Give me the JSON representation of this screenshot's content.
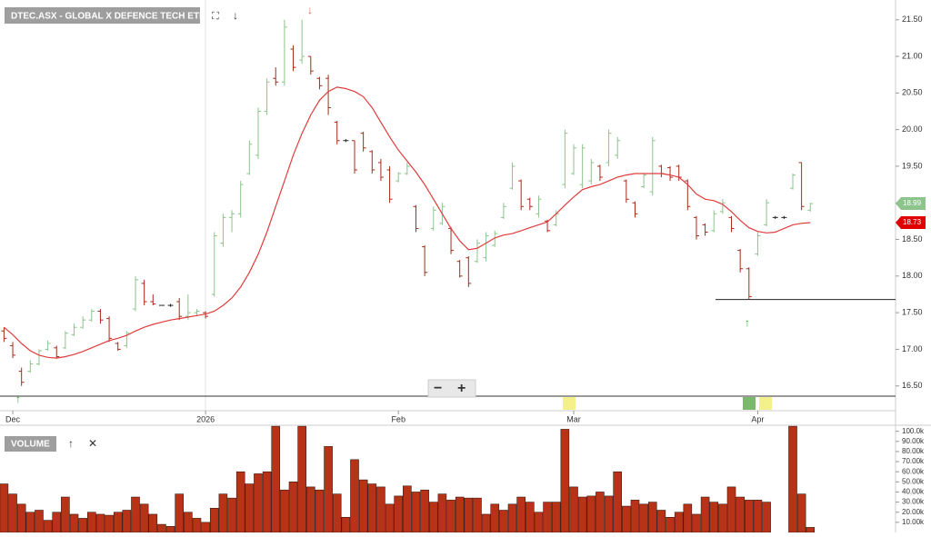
{
  "chart_data": [
    {
      "type": "ohlc",
      "title": "DTEC.ASX - GLOBAL X DEFENCE TECH ETF",
      "categories": [
        null,
        "Dec",
        null,
        null,
        null,
        null,
        null,
        null,
        null,
        null,
        null,
        null,
        null,
        null,
        null,
        null,
        null,
        null,
        null,
        null,
        null,
        null,
        null,
        "2026",
        null,
        null,
        null,
        null,
        null,
        null,
        null,
        null,
        null,
        null,
        null,
        null,
        null,
        null,
        null,
        null,
        null,
        null,
        null,
        null,
        null,
        "Feb",
        null,
        null,
        null,
        null,
        null,
        null,
        null,
        null,
        null,
        null,
        null,
        null,
        null,
        null,
        null,
        null,
        null,
        null,
        null,
        "Mar",
        null,
        null,
        null,
        null,
        null,
        null,
        null,
        null,
        null,
        null,
        null,
        null,
        null,
        null,
        null,
        null,
        null,
        null,
        null,
        null,
        "Apr",
        null,
        null,
        null,
        null,
        null,
        null
      ],
      "open": [
        17.25,
        17.05,
        16.7,
        16.7,
        16.8,
        17.0,
        17.02,
        17.02,
        17.2,
        17.3,
        17.4,
        17.52,
        17.42,
        17.08,
        17.05,
        17.55,
        17.9,
        17.65,
        17.6,
        17.6,
        17.65,
        17.45,
        17.5,
        17.5,
        17.75,
        18.45,
        18.8,
        18.85,
        19.4,
        19.65,
        20.25,
        20.7,
        20.65,
        21.1,
        20.95,
        21.0,
        20.7,
        20.7,
        20.1,
        19.85,
        19.85,
        19.95,
        19.7,
        19.55,
        19.45,
        19.3,
        19.4,
        18.95,
        18.4,
        18.65,
        18.72,
        18.65,
        18.2,
        18.25,
        18.2,
        18.25,
        18.42,
        18.8,
        19.2,
        19.3,
        19.05,
        18.85,
        18.75,
        18.7,
        19.25,
        19.4,
        19.25,
        19.3,
        19.5,
        19.55,
        19.65,
        19.3,
        19.0,
        19.22,
        19.15,
        19.5,
        19.48,
        19.5,
        19.3,
        18.8,
        18.7,
        18.62,
        18.88,
        18.8,
        18.35,
        18.1,
        18.3,
        18.7,
        18.8,
        18.8,
        19.2,
        19.55,
        18.9
      ],
      "high": [
        17.3,
        17.1,
        16.75,
        16.85,
        17.0,
        17.12,
        17.05,
        17.25,
        17.35,
        17.45,
        17.55,
        17.55,
        17.45,
        17.1,
        17.25,
        18.0,
        17.95,
        17.75,
        17.6,
        17.62,
        17.7,
        17.75,
        17.55,
        17.52,
        18.6,
        18.85,
        18.9,
        19.3,
        19.85,
        20.3,
        20.7,
        20.85,
        21.5,
        21.15,
        21.5,
        21.0,
        20.72,
        20.75,
        20.12,
        19.87,
        19.85,
        19.97,
        19.72,
        19.6,
        19.5,
        19.42,
        19.55,
        18.97,
        18.42,
        18.95,
        19.0,
        18.67,
        18.22,
        18.27,
        18.5,
        18.6,
        18.62,
        19.0,
        19.55,
        19.32,
        19.07,
        19.1,
        18.77,
        18.9,
        20.0,
        19.8,
        19.8,
        19.6,
        19.52,
        20.0,
        19.9,
        19.32,
        19.02,
        19.4,
        19.9,
        19.52,
        19.5,
        19.52,
        19.32,
        18.82,
        18.72,
        18.9,
        19.05,
        18.82,
        18.37,
        18.12,
        18.6,
        19.05,
        18.82,
        18.82,
        19.4,
        19.55,
        19.0
      ],
      "low": [
        17.1,
        16.88,
        16.5,
        16.68,
        16.78,
        16.98,
        16.88,
        17.0,
        17.18,
        17.28,
        17.38,
        17.35,
        17.1,
        16.98,
        17.02,
        17.52,
        17.6,
        17.6,
        17.6,
        17.58,
        17.4,
        17.4,
        17.45,
        17.42,
        17.72,
        18.4,
        18.6,
        18.8,
        19.38,
        19.6,
        20.2,
        20.6,
        20.6,
        20.8,
        20.9,
        20.75,
        20.55,
        20.2,
        19.8,
        19.83,
        19.4,
        19.7,
        19.4,
        19.3,
        19.0,
        19.28,
        19.38,
        18.6,
        18.0,
        18.62,
        18.7,
        18.3,
        17.98,
        17.85,
        18.18,
        18.2,
        18.4,
        18.78,
        19.18,
        18.9,
        18.9,
        18.8,
        18.6,
        18.68,
        19.2,
        19.38,
        19.2,
        19.25,
        19.3,
        19.5,
        19.6,
        19.0,
        18.8,
        19.2,
        19.1,
        19.35,
        19.3,
        19.3,
        18.9,
        18.5,
        18.55,
        18.6,
        18.85,
        18.6,
        18.05,
        17.68,
        18.28,
        18.68,
        18.78,
        18.78,
        19.18,
        18.9,
        18.88
      ],
      "close": [
        17.15,
        16.92,
        16.55,
        16.8,
        16.98,
        17.08,
        16.9,
        17.22,
        17.3,
        17.4,
        17.52,
        17.4,
        17.15,
        17.0,
        17.22,
        17.95,
        17.65,
        17.62,
        17.6,
        17.6,
        17.45,
        17.5,
        17.52,
        17.45,
        18.55,
        18.8,
        18.85,
        19.25,
        19.8,
        20.25,
        20.65,
        20.65,
        21.4,
        20.85,
        21.0,
        20.8,
        20.6,
        20.3,
        19.85,
        19.85,
        19.45,
        19.75,
        19.45,
        19.35,
        19.05,
        19.4,
        19.5,
        18.65,
        18.05,
        18.9,
        18.95,
        18.35,
        18.0,
        17.9,
        18.45,
        18.55,
        18.58,
        18.95,
        19.5,
        18.95,
        18.95,
        19.05,
        18.62,
        18.85,
        19.95,
        19.75,
        19.75,
        19.55,
        19.35,
        19.95,
        19.85,
        19.05,
        18.85,
        19.38,
        19.85,
        19.4,
        19.35,
        19.35,
        18.95,
        18.55,
        18.6,
        18.85,
        19.0,
        18.65,
        18.1,
        17.72,
        18.55,
        19.0,
        18.8,
        18.8,
        19.38,
        18.95,
        18.99
      ],
      "moving_average": [
        17.3,
        17.2,
        17.08,
        16.98,
        16.92,
        16.89,
        16.88,
        16.9,
        16.93,
        16.97,
        17.02,
        17.07,
        17.12,
        17.15,
        17.19,
        17.25,
        17.3,
        17.34,
        17.37,
        17.4,
        17.42,
        17.44,
        17.46,
        17.48,
        17.52,
        17.6,
        17.7,
        17.85,
        18.05,
        18.3,
        18.6,
        18.95,
        19.3,
        19.65,
        19.95,
        20.2,
        20.4,
        20.52,
        20.58,
        20.56,
        20.52,
        20.45,
        20.3,
        20.1,
        19.9,
        19.72,
        19.57,
        19.42,
        19.25,
        19.05,
        18.85,
        18.65,
        18.48,
        18.36,
        18.38,
        18.45,
        18.52,
        18.56,
        18.58,
        18.62,
        18.66,
        18.7,
        18.74,
        18.85,
        18.97,
        19.08,
        19.18,
        19.22,
        19.25,
        19.3,
        19.35,
        19.38,
        19.4,
        19.4,
        19.4,
        19.4,
        19.38,
        19.35,
        19.25,
        19.12,
        19.05,
        19.03,
        18.98,
        18.88,
        18.76,
        18.66,
        18.61,
        18.59,
        18.6,
        18.65,
        18.7,
        18.72,
        18.73
      ],
      "up_color": "#8cc48c",
      "down_color": "#a62b1c",
      "flat_color": "#222222",
      "ma_color": "#e03c3c",
      "last_price": 18.99,
      "last_ma": 18.73,
      "support_line": 17.68,
      "ylim": [
        16.36,
        21.77
      ],
      "yticks": [
        {
          "value": 16.5,
          "label": "16.50"
        },
        {
          "value": 17,
          "label": "17.00"
        },
        {
          "value": 17.5,
          "label": "17.50"
        },
        {
          "value": 18,
          "label": "18.00"
        },
        {
          "value": 18.5,
          "label": "18.50"
        },
        {
          "value": 19,
          "label": "19.00"
        },
        {
          "value": 19.5,
          "label": "19.50"
        },
        {
          "value": 20,
          "label": "20.00"
        },
        {
          "value": 20.5,
          "label": "20.50"
        },
        {
          "value": 21,
          "label": "21.00"
        },
        {
          "value": 21.5,
          "label": "21.50"
        }
      ]
    },
    {
      "type": "bar",
      "title": "VOLUME",
      "values": [
        48000,
        38000,
        28000,
        20000,
        22000,
        12000,
        20000,
        35000,
        18000,
        14000,
        20000,
        18000,
        17000,
        20000,
        22000,
        35000,
        28000,
        18000,
        8000,
        6000,
        38000,
        20000,
        14000,
        10000,
        24000,
        38000,
        34000,
        60000,
        48000,
        58000,
        60000,
        105000,
        42000,
        50000,
        105000,
        45000,
        42000,
        85000,
        38000,
        15000,
        72000,
        52000,
        48000,
        45000,
        28000,
        36000,
        46000,
        40000,
        42000,
        30000,
        38000,
        32000,
        35000,
        34000,
        34000,
        18000,
        28000,
        22000,
        28000,
        35000,
        30000,
        20000,
        30000,
        30000,
        102000,
        45000,
        35000,
        36000,
        40000,
        36000,
        60000,
        26000,
        32000,
        28000,
        30000,
        22000,
        15000,
        20000,
        28000,
        18000,
        35000,
        30000,
        28000,
        45000,
        35000,
        32000,
        32000,
        30000,
        null,
        null,
        105000,
        38000,
        5000
      ],
      "color": "#b83218",
      "ylim": [
        0,
        106000
      ],
      "yticks": [
        {
          "value": 10000,
          "label": "10.00k"
        },
        {
          "value": 20000,
          "label": "20.00k"
        },
        {
          "value": 30000,
          "label": "30.00k"
        },
        {
          "value": 40000,
          "label": "40.00k"
        },
        {
          "value": 50000,
          "label": "50.00k"
        },
        {
          "value": 60000,
          "label": "60.00k"
        },
        {
          "value": 70000,
          "label": "70.00k"
        },
        {
          "value": 80000,
          "label": "80.00k"
        },
        {
          "value": 90000,
          "label": "90.00k"
        },
        {
          "value": 100000,
          "label": "100.0k"
        }
      ]
    }
  ]
}
